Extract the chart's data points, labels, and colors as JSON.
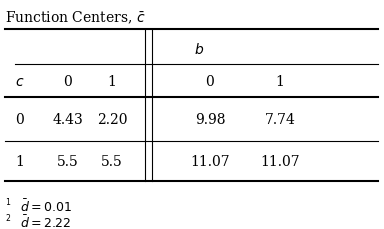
{
  "title": "Function Centers, $\\bar{c}$",
  "col_header_b": "$b$",
  "col_header_c": "$c$",
  "sub_col_headers": [
    "0",
    "1",
    "0",
    "1"
  ],
  "row_labels": [
    "0",
    "1"
  ],
  "data": [
    [
      "4.43",
      "2.20",
      "9.98",
      "7.74"
    ],
    [
      "5.5",
      "5.5",
      "11.07",
      "11.07"
    ]
  ],
  "footnote1_super": "$^1$",
  "footnote1_text": "$\\bar{d} = 0.01$",
  "footnote2_super": "$^2$",
  "footnote2_text": "$\\bar{d} = 2.22$",
  "bg_color": "white",
  "text_color": "black",
  "fontsize": 10,
  "footnote_fontsize": 9
}
